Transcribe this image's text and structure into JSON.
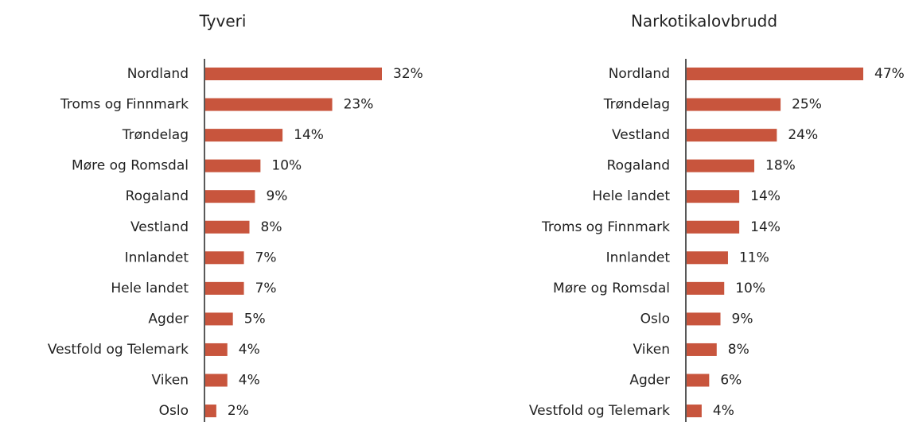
{
  "chart_data": [
    {
      "type": "bar",
      "title": "Tyveri",
      "color": "#c8553d",
      "categories": [
        "Nordland",
        "Troms og Finnmark",
        "Trøndelag",
        "Møre og Romsdal",
        "Rogaland",
        "Vestland",
        "Innlandet",
        "Hele landet",
        "Agder",
        "Vestfold og Telemark",
        "Viken",
        "Oslo"
      ],
      "values": [
        32,
        23,
        14,
        10,
        9,
        8,
        7,
        7,
        5,
        4,
        4,
        2
      ],
      "value_labels": [
        "32%",
        "23%",
        "14%",
        "10%",
        "9%",
        "8%",
        "7%",
        "7%",
        "5%",
        "4%",
        "4%",
        "2%"
      ]
    },
    {
      "type": "bar",
      "title": "Narkotikalovbrudd",
      "color": "#c8553d",
      "categories": [
        "Nordland",
        "Trøndelag",
        "Vestland",
        "Rogaland",
        "Hele landet",
        "Troms og Finnmark",
        "Innlandet",
        "Møre og Romsdal",
        "Oslo",
        "Viken",
        "Agder",
        "Vestfold og Telemark"
      ],
      "values": [
        47,
        25,
        24,
        18,
        14,
        14,
        11,
        10,
        9,
        8,
        6,
        4
      ],
      "value_labels": [
        "47%",
        "25%",
        "24%",
        "18%",
        "14%",
        "14%",
        "11%",
        "10%",
        "9%",
        "8%",
        "6%",
        "4%"
      ]
    }
  ]
}
